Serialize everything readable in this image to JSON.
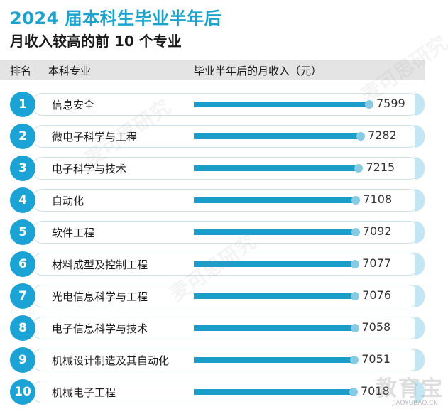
{
  "title": "2024 届本科生毕业半年后",
  "subtitle": "月收入较高的前 10 个专业",
  "header": {
    "rank": "排名",
    "major": "本科专业",
    "income": "毕业半年后的月收入（元）"
  },
  "watermark": {
    "text": "麦可思研究",
    "logo": "教育宝",
    "url": "JIAOYUBAO.CN"
  },
  "colors": {
    "title": "#1aa3cc",
    "badge": "#1aa3d4",
    "bar": "#1a9ec9",
    "header_bg": "#e4e4e4"
  },
  "chart_data": {
    "type": "bar",
    "orientation": "horizontal",
    "title": "2024 届本科生毕业半年后",
    "subtitle": "月收入较高的前 10 个专业",
    "ylabel": "毕业半年后的月收入（元）",
    "ranks": [
      "1",
      "2",
      "3",
      "4",
      "5",
      "6",
      "7",
      "8",
      "9",
      "10"
    ],
    "categories": [
      "信息安全",
      "微电子科学与工程",
      "电子科学与技术",
      "自动化",
      "软件工程",
      "材料成型及控制工程",
      "光电信息科学与工程",
      "电子信息科学与技术",
      "机械设计制造及其自动化",
      "机械电子工程"
    ],
    "values": [
      7599,
      7282,
      7215,
      7108,
      7092,
      7077,
      7076,
      7058,
      7051,
      7018
    ],
    "labels": [
      "7599",
      "7282",
      "7215",
      "7108",
      "7092",
      "7077",
      "7076",
      "7058",
      "7051",
      "7018"
    ]
  }
}
